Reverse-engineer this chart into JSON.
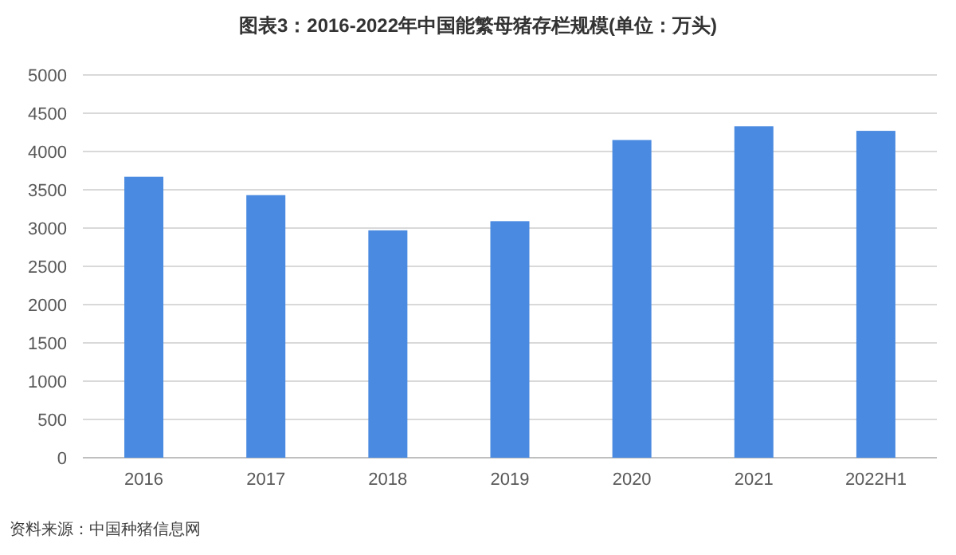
{
  "chart_data": {
    "type": "bar",
    "title": "图表3：2016-2022年中国能繁母猪存栏规模(单位：万头)",
    "categories": [
      "2016",
      "2017",
      "2018",
      "2019",
      "2020",
      "2021",
      "2022H1"
    ],
    "values": [
      3670,
      3430,
      2970,
      3090,
      4150,
      4330,
      4270
    ],
    "color": "#4a8ae0",
    "ylim": [
      0,
      5000
    ],
    "yticks": [
      0,
      500,
      1000,
      1500,
      2000,
      2500,
      3000,
      3500,
      4000,
      4500,
      5000
    ],
    "grid": "y",
    "annotations": [
      "资料来源：中国种猪信息网"
    ]
  }
}
